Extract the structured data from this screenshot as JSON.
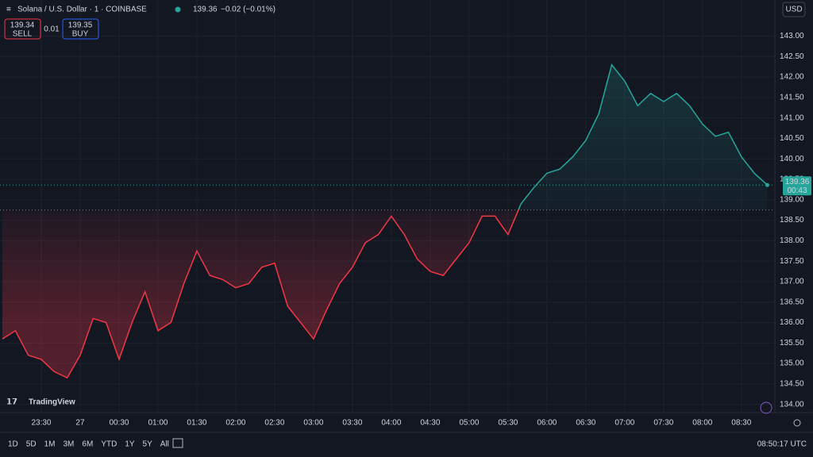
{
  "chart_data": {
    "type": "line",
    "title": "Solana / U.S. Dollar · 1 · COINBASE",
    "change": "−0.02 (−0.01%)",
    "categories": [
      null,
      null,
      null,
      "23:30",
      null,
      null,
      "27",
      null,
      null,
      "00:30",
      null,
      null,
      "01:00",
      null,
      null,
      "01:30",
      null,
      null,
      "02:00",
      null,
      null,
      "02:30",
      null,
      null,
      "03:00",
      null,
      null,
      "03:30",
      null,
      null,
      "04:00",
      null,
      null,
      "04:30",
      null,
      null,
      "05:00",
      null,
      null,
      "05:30",
      null,
      null,
      "06:00",
      null,
      null,
      "06:30",
      null,
      null,
      "07:00",
      null,
      null,
      "07:30",
      null,
      null,
      "08:00",
      null,
      null,
      "08:30",
      null,
      null
    ],
    "values": [
      135.6,
      135.8,
      135.2,
      135.1,
      134.8,
      134.65,
      135.2,
      136.1,
      136.0,
      135.1,
      136.0,
      136.75,
      135.8,
      136.0,
      136.95,
      137.75,
      137.15,
      137.05,
      136.85,
      136.95,
      137.35,
      137.45,
      136.4,
      136.0,
      135.6,
      136.3,
      136.95,
      137.35,
      137.95,
      138.15,
      138.6,
      138.15,
      137.55,
      137.25,
      137.15,
      137.55,
      137.95,
      138.6,
      138.6,
      138.15,
      138.9,
      139.3,
      139.65,
      139.75,
      140.05,
      140.45,
      141.1,
      142.3,
      141.9,
      141.3,
      141.6,
      141.4,
      141.6,
      141.3,
      140.85,
      140.55,
      140.65,
      140.05,
      139.65,
      139.36
    ],
    "baseline": 138.75,
    "up_color": "#26a69a",
    "down_color": "#f23645",
    "ylim": [
      133.8,
      143.3
    ],
    "yticks": [
      {
        "value": 134,
        "label": "134.00"
      },
      {
        "value": 134.5,
        "label": "134.50"
      },
      {
        "value": 135,
        "label": "135.00"
      },
      {
        "value": 135.5,
        "label": "135.50"
      },
      {
        "value": 136,
        "label": "136.00"
      },
      {
        "value": 136.5,
        "label": "136.50"
      },
      {
        "value": 137,
        "label": "137.00"
      },
      {
        "value": 137.5,
        "label": "137.50"
      },
      {
        "value": 138,
        "label": "138.00"
      },
      {
        "value": 138.5,
        "label": "138.50"
      },
      {
        "value": 139,
        "label": "139.00"
      },
      {
        "value": 139.5,
        "label": "139.50"
      },
      {
        "value": 140,
        "label": "140.00"
      },
      {
        "value": 140.5,
        "label": "140.50"
      },
      {
        "value": 141,
        "label": "141.00"
      },
      {
        "value": 141.5,
        "label": "141.50"
      },
      {
        "value": 142,
        "label": "142.00"
      },
      {
        "value": 142.5,
        "label": "142.50"
      },
      {
        "value": 143,
        "label": "143.00"
      }
    ],
    "grid": true
  },
  "ui": {
    "sell_price": "139.34",
    "sell": "SELL",
    "spread": "0.01",
    "buy_price": "139.35",
    "buy": "BUY",
    "currency": "USD",
    "countdown": "00:43",
    "brand": "TradingView",
    "intervals": [
      "1D",
      "5D",
      "1M",
      "3M",
      "6M",
      "YTD",
      "1Y",
      "5Y",
      "All"
    ],
    "clock": "08:50:17 UTC"
  }
}
